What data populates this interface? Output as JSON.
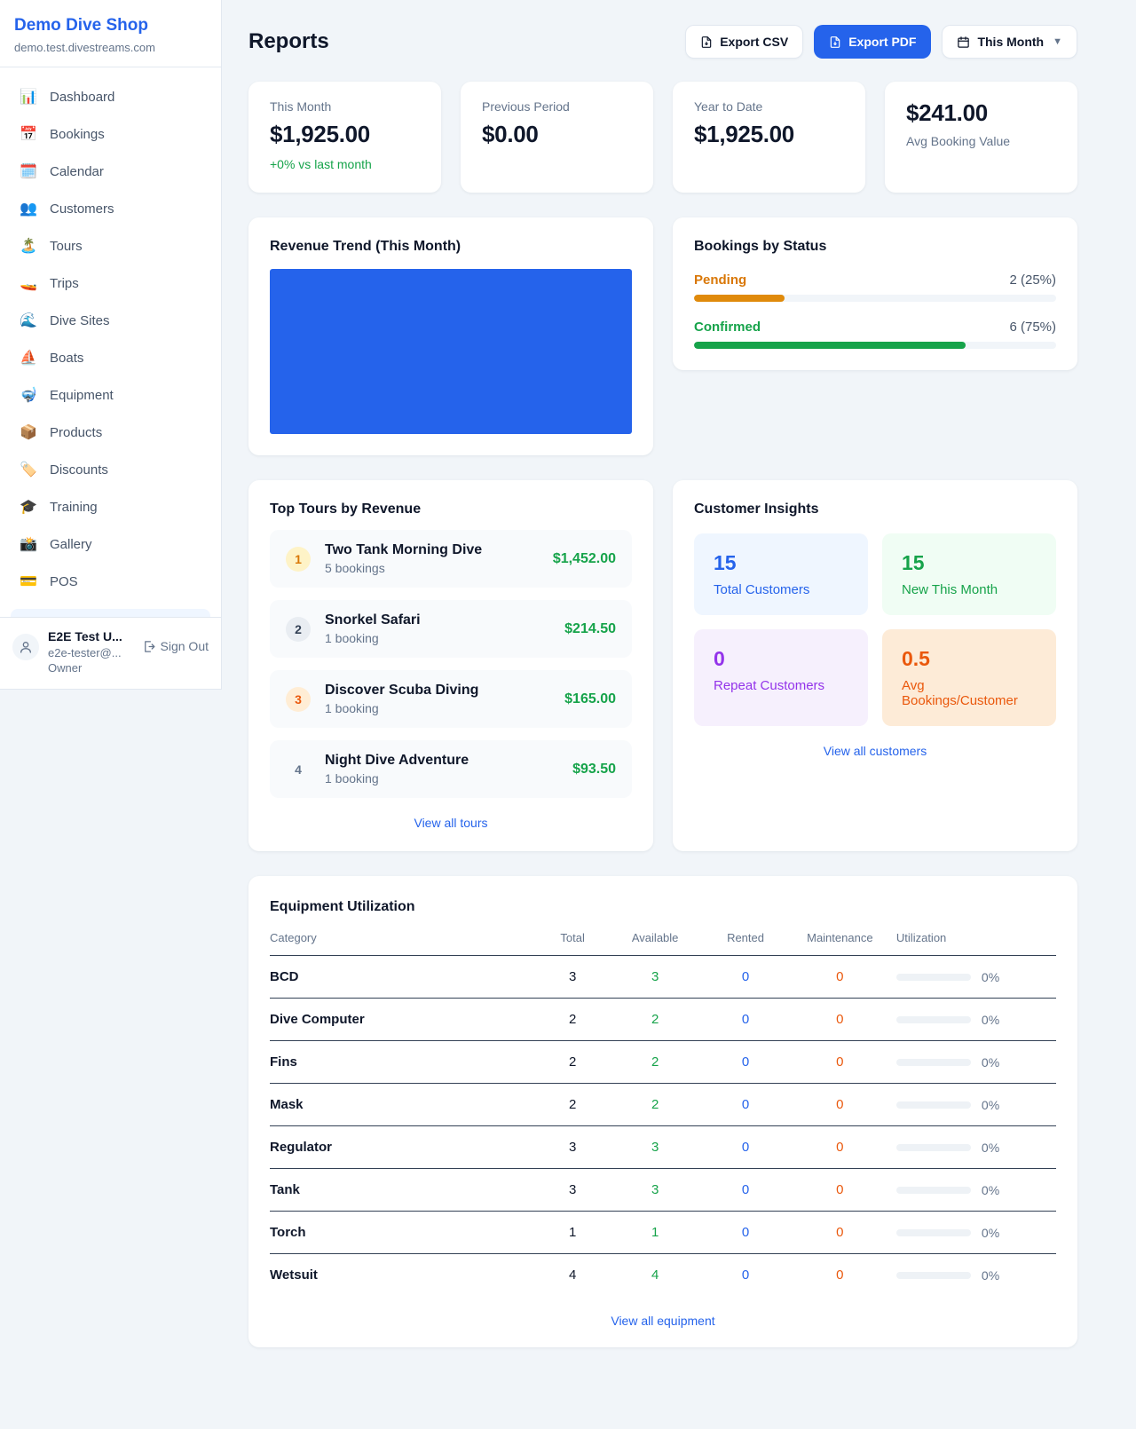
{
  "colors": {
    "accent": "#2563EB",
    "green": "#16A34A",
    "pending_orange": "#D97706",
    "maintenance_orange": "#EA580C",
    "purple": "#9333EA"
  },
  "sidebar": {
    "shop_name": "Demo Dive Shop",
    "domain": "demo.test.divestreams.com",
    "items": [
      {
        "icon": "📊",
        "label": "Dashboard"
      },
      {
        "icon": "📅",
        "label": "Bookings"
      },
      {
        "icon": "🗓️",
        "label": "Calendar"
      },
      {
        "icon": "👥",
        "label": "Customers"
      },
      {
        "icon": "🏝️",
        "label": "Tours"
      },
      {
        "icon": "🚤",
        "label": "Trips"
      },
      {
        "icon": "🌊",
        "label": "Dive Sites"
      },
      {
        "icon": "⛵",
        "label": "Boats"
      },
      {
        "icon": "🤿",
        "label": "Equipment"
      },
      {
        "icon": "📦",
        "label": "Products"
      },
      {
        "icon": "🏷️",
        "label": "Discounts"
      },
      {
        "icon": "🎓",
        "label": "Training"
      },
      {
        "icon": "📸",
        "label": "Gallery"
      },
      {
        "icon": "💳",
        "label": "POS"
      }
    ],
    "user": {
      "name": "E2E Test U...",
      "email": "e2e-tester@...",
      "role": "Owner",
      "sign_out": "Sign Out"
    }
  },
  "header": {
    "title": "Reports",
    "export_csv": "Export CSV",
    "export_pdf": "Export PDF",
    "period": "This Month"
  },
  "stats": [
    {
      "label": "This Month",
      "value": "$1,925.00",
      "delta": "+0% vs last month"
    },
    {
      "label": "Previous Period",
      "value": "$0.00"
    },
    {
      "label": "Year to Date",
      "value": "$1,925.00"
    },
    {
      "label": "Avg Booking Value",
      "value": "$241.00"
    }
  ],
  "revenue_trend": {
    "title": "Revenue Trend (This Month)",
    "chart_data": {
      "type": "bar",
      "categories": [
        "This Month"
      ],
      "values": [
        1925
      ],
      "title": "Revenue Trend (This Month)",
      "xlabel": "",
      "ylabel": "",
      "note": "single full-width solid bar filling entire plot area",
      "bar_color": "#2563EB"
    }
  },
  "bookings_by_status": {
    "title": "Bookings by Status",
    "rows": [
      {
        "label": "Pending",
        "value": "2 (25%)",
        "pct": 25
      },
      {
        "label": "Confirmed",
        "value": "6 (75%)",
        "pct": 75
      }
    ]
  },
  "top_tours": {
    "title": "Top Tours by Revenue",
    "items": [
      {
        "rank": "1",
        "name": "Two Tank Morning Dive",
        "bookings": "5 bookings",
        "revenue": "$1,452.00"
      },
      {
        "rank": "2",
        "name": "Snorkel Safari",
        "bookings": "1 booking",
        "revenue": "$214.50"
      },
      {
        "rank": "3",
        "name": "Discover Scuba Diving",
        "bookings": "1 booking",
        "revenue": "$165.00"
      },
      {
        "rank": "4",
        "name": "Night Dive Adventure",
        "bookings": "1 booking",
        "revenue": "$93.50"
      }
    ],
    "view_all": "View all tours"
  },
  "customer_insights": {
    "title": "Customer Insights",
    "tiles": [
      {
        "value": "15",
        "label": "Total Customers"
      },
      {
        "value": "15",
        "label": "New This Month"
      },
      {
        "value": "0",
        "label": "Repeat Customers"
      },
      {
        "value": "0.5",
        "label": "Avg Bookings/Customer"
      }
    ],
    "view_all": "View all customers"
  },
  "equipment": {
    "title": "Equipment Utilization",
    "headers": [
      "Category",
      "Total",
      "Available",
      "Rented",
      "Maintenance",
      "Utilization"
    ],
    "rows": [
      {
        "category": "BCD",
        "total": "3",
        "available": "3",
        "rented": "0",
        "maintenance": "0",
        "utilization": "0%"
      },
      {
        "category": "Dive Computer",
        "total": "2",
        "available": "2",
        "rented": "0",
        "maintenance": "0",
        "utilization": "0%"
      },
      {
        "category": "Fins",
        "total": "2",
        "available": "2",
        "rented": "0",
        "maintenance": "0",
        "utilization": "0%"
      },
      {
        "category": "Mask",
        "total": "2",
        "available": "2",
        "rented": "0",
        "maintenance": "0",
        "utilization": "0%"
      },
      {
        "category": "Regulator",
        "total": "3",
        "available": "3",
        "rented": "0",
        "maintenance": "0",
        "utilization": "0%"
      },
      {
        "category": "Tank",
        "total": "3",
        "available": "3",
        "rented": "0",
        "maintenance": "0",
        "utilization": "0%"
      },
      {
        "category": "Torch",
        "total": "1",
        "available": "1",
        "rented": "0",
        "maintenance": "0",
        "utilization": "0%"
      },
      {
        "category": "Wetsuit",
        "total": "4",
        "available": "4",
        "rented": "0",
        "maintenance": "0",
        "utilization": "0%"
      }
    ],
    "view_all": "View all equipment"
  }
}
